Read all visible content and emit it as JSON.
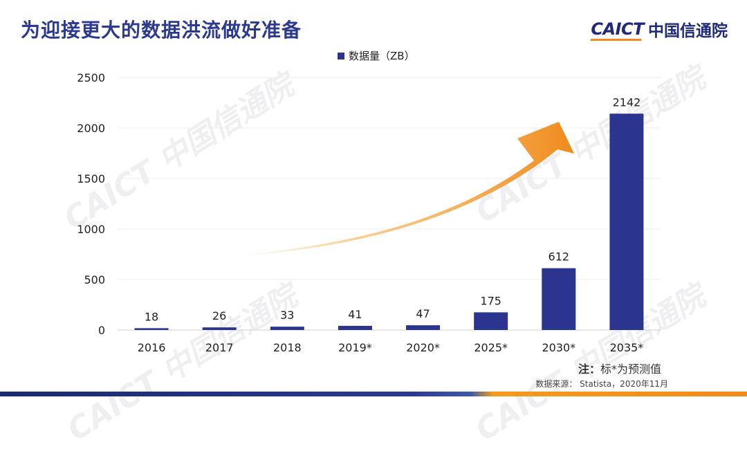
{
  "header": {
    "title": "为迎接更大的数据洪流做好准备",
    "logo_en": "CAICT",
    "logo_cn": "中国信通院"
  },
  "watermarks": [
    "CAICT 中国信通院",
    "CAICT 中国信通院",
    "CAICT 中国信通院",
    "CAICT 中国信通院"
  ],
  "legend": {
    "label": "数据量（ZB）"
  },
  "colors": {
    "bar": "#2b3590",
    "accent": "#f08a1c",
    "title": "#2b3990"
  },
  "note": {
    "head": "注：",
    "text": "标*为预测值"
  },
  "source": {
    "text": "数据来源： Statista，2020年11月"
  },
  "chart_data": {
    "type": "bar",
    "title": "",
    "xlabel": "",
    "ylabel": "",
    "categories": [
      "2016",
      "2017",
      "2018",
      "2019*",
      "2020*",
      "2025*",
      "2030*",
      "2035*"
    ],
    "series": [
      {
        "name": "数据量（ZB）",
        "values": [
          18,
          26,
          33,
          41,
          47,
          175,
          612,
          2142
        ]
      }
    ],
    "data_labels": [
      "18",
      "26",
      "33",
      "41",
      "47",
      "175",
      "612",
      "2142"
    ],
    "ylim": [
      0,
      2500
    ],
    "yticks": [
      0,
      500,
      1000,
      1500,
      2000,
      2500
    ],
    "ytick_labels": [
      "0",
      "500",
      "1000",
      "1500",
      "2000",
      "2500"
    ],
    "grid": true,
    "legend": "top-center",
    "annotations": [
      {
        "kind": "growth-arrow",
        "color": "#f08a1c"
      }
    ]
  }
}
